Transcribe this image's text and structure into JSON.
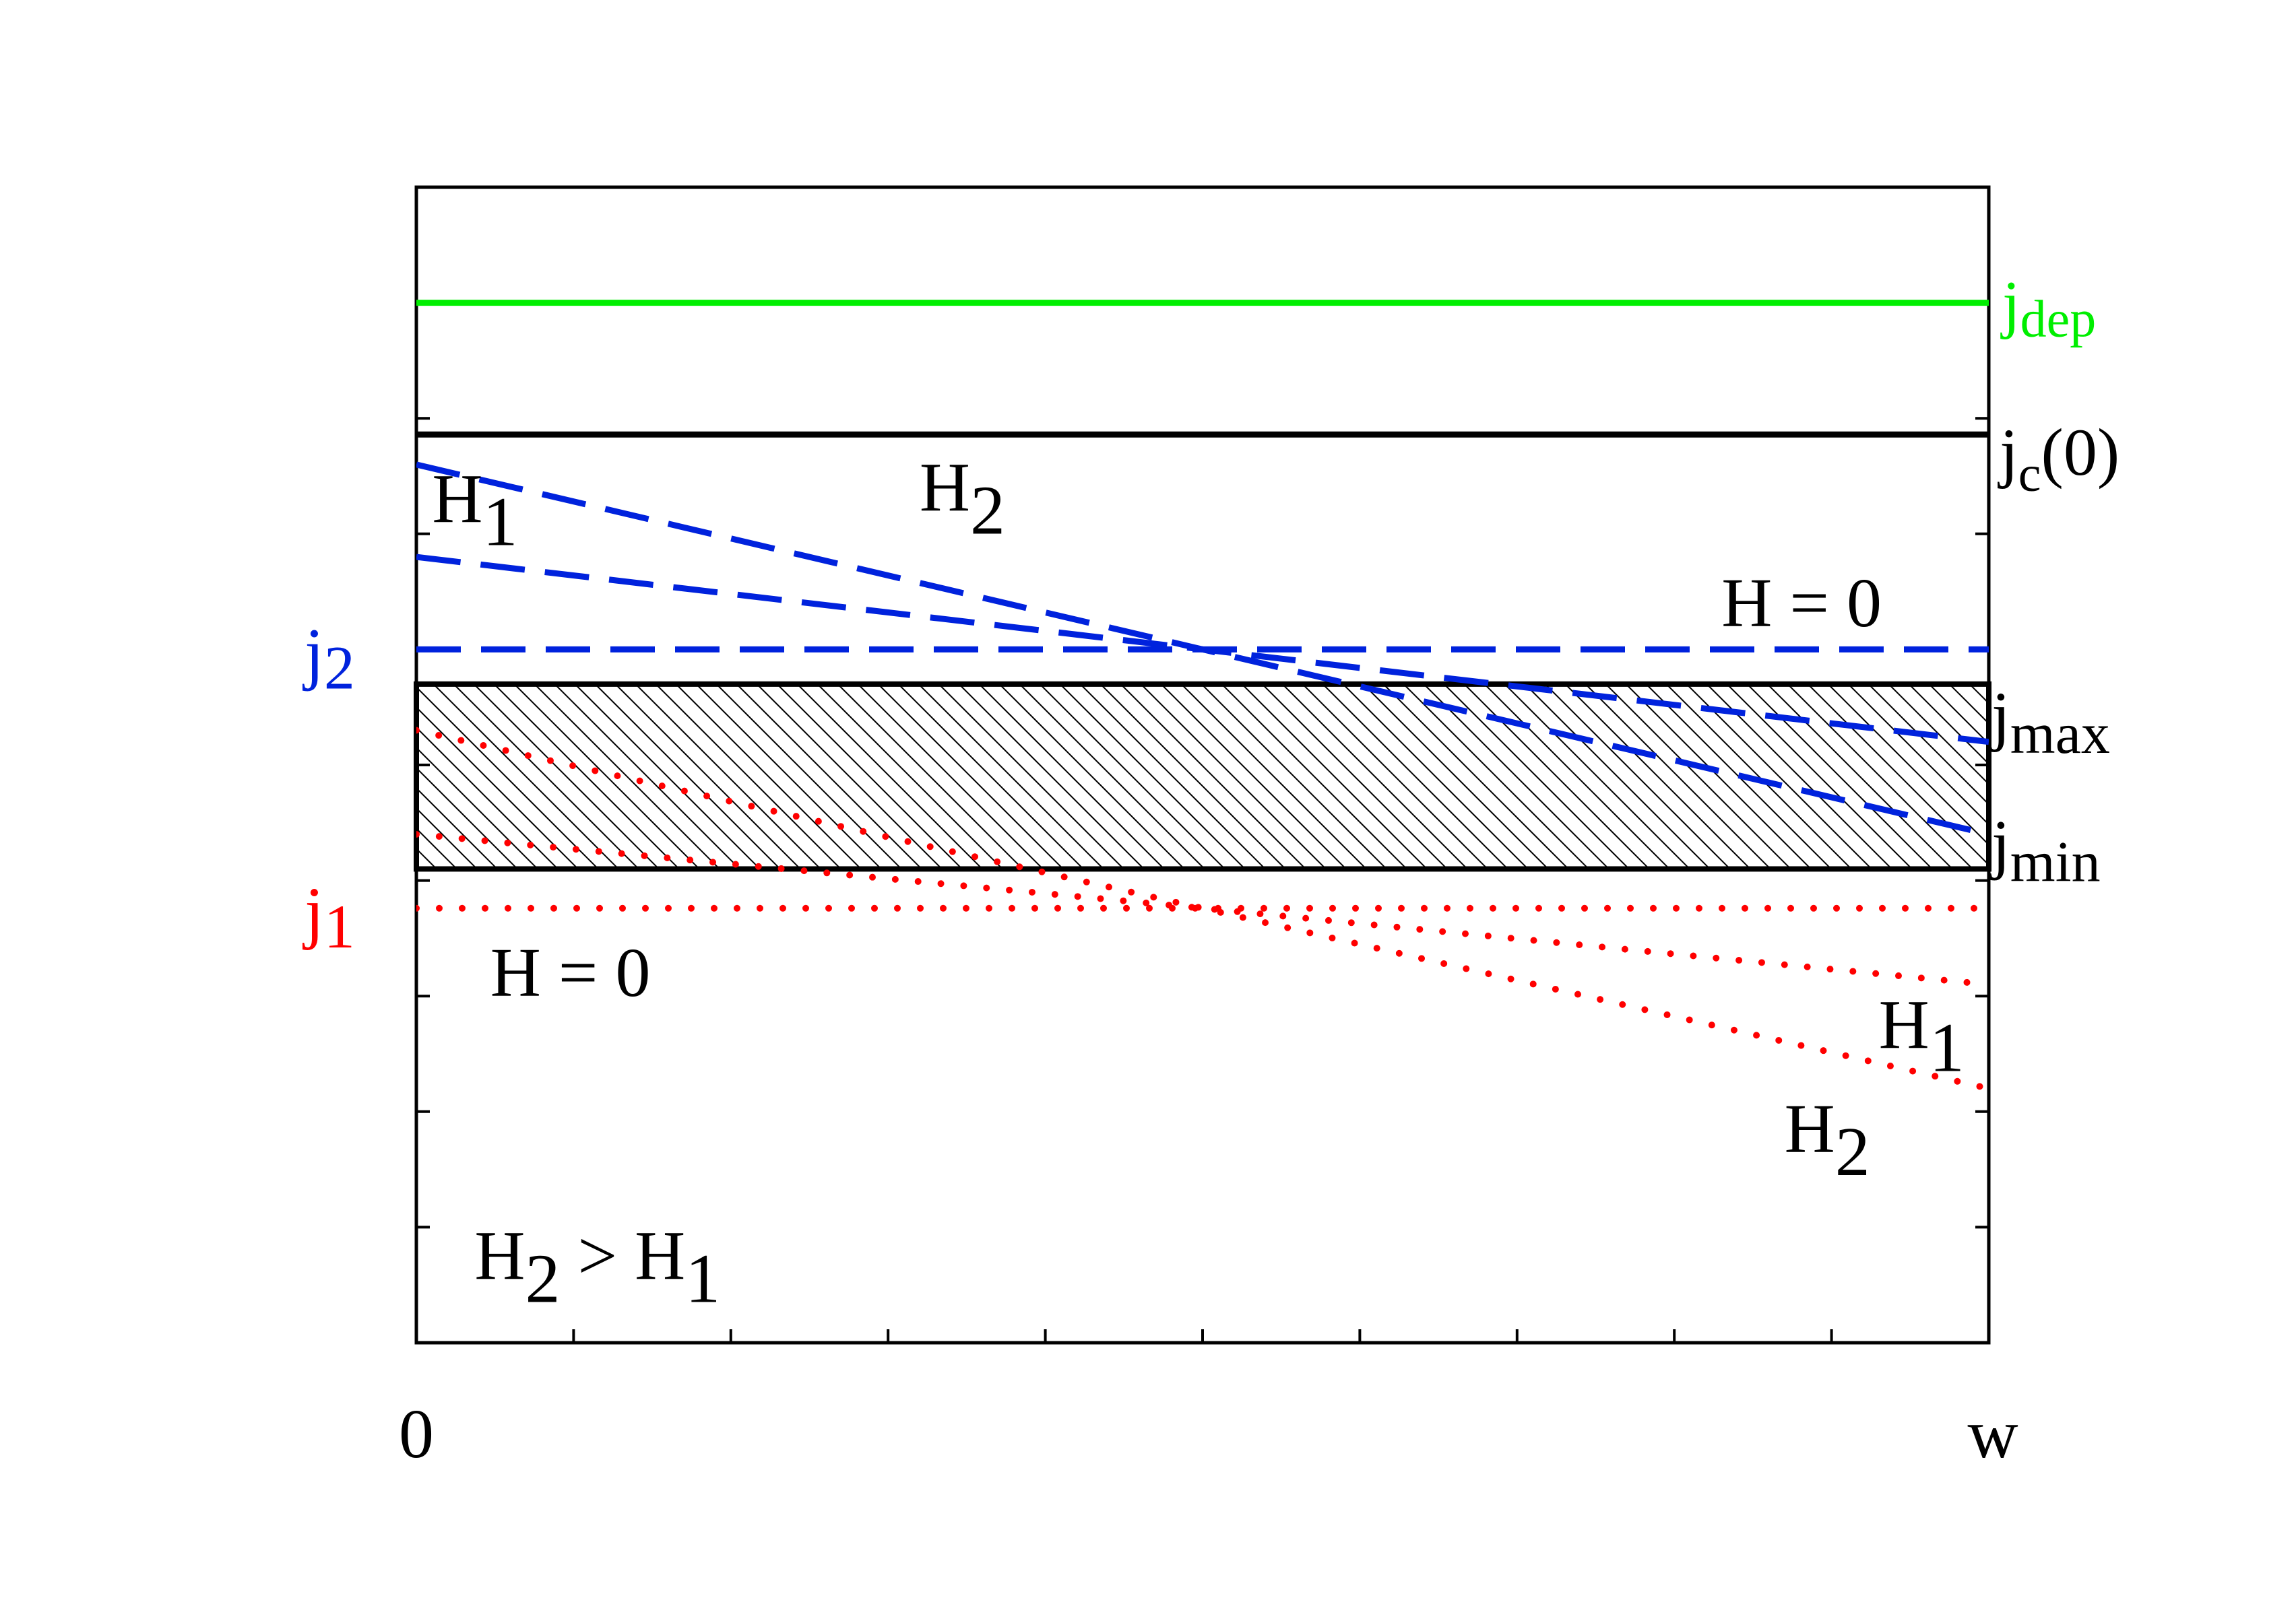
{
  "chart_data": {
    "type": "line",
    "title": "",
    "xlabel": "",
    "ylabel": "",
    "x_tick_labels": {
      "start": "0",
      "end": "w"
    },
    "xlim": [
      0,
      1
    ],
    "ylim": [
      0,
      1
    ],
    "grid": false,
    "colors": {
      "depairing": "#00ee00",
      "critical": "#000000",
      "upper_branch": "#0022dd",
      "lower_branch": "#ff0000",
      "band": "#000000"
    },
    "levels": [
      {
        "id": "jdep",
        "name": "j",
        "sub": "dep",
        "y": 0.9,
        "color": "#00ee00",
        "style": "solid"
      },
      {
        "id": "jc0",
        "name": "j",
        "sub": "c",
        "suffix": "(0)",
        "y": 0.786,
        "color": "#000000",
        "style": "solid"
      }
    ],
    "band": {
      "ymin": 0.41,
      "ymax": 0.57,
      "labels": {
        "max_name": "j",
        "max_sub": "max",
        "min_name": "j",
        "min_sub": "min"
      },
      "hatch": true
    },
    "upper_curves": {
      "label": {
        "name": "j",
        "sub": "2"
      },
      "style": "dashed",
      "color": "#0022dd",
      "series": [
        {
          "field": "H = 0",
          "x": [
            0,
            0.5,
            1
          ],
          "y": [
            0.6,
            0.6,
            0.6
          ]
        },
        {
          "field": "H1",
          "x": [
            0,
            0.5,
            1
          ],
          "y": [
            0.68,
            0.6,
            0.52
          ]
        },
        {
          "field": "H2",
          "x": [
            0,
            0.5,
            1
          ],
          "y": [
            0.76,
            0.6,
            0.44
          ]
        }
      ]
    },
    "lower_curves": {
      "label": {
        "name": "j",
        "sub": "1"
      },
      "style": "dotted",
      "color": "#ff0000",
      "series": [
        {
          "field": "H = 0",
          "x": [
            0,
            0.5,
            1
          ],
          "y": [
            0.376,
            0.376,
            0.376
          ]
        },
        {
          "field": "H1",
          "x": [
            0,
            0.5,
            1
          ],
          "y": [
            0.44,
            0.376,
            0.31
          ]
        },
        {
          "field": "H2",
          "x": [
            0,
            0.5,
            1
          ],
          "y": [
            0.53,
            0.376,
            0.22
          ]
        }
      ]
    },
    "annotations": [
      {
        "id": "upper-h1",
        "name": "H",
        "sub": "1",
        "x": 0.01,
        "y": 0.71
      },
      {
        "id": "upper-h2",
        "name": "H",
        "sub": "2",
        "x": 0.32,
        "y": 0.72
      },
      {
        "id": "upper-h0",
        "text": "H = 0",
        "x": 0.83,
        "y": 0.62
      },
      {
        "id": "lower-h0",
        "text": "H = 0",
        "x": 0.047,
        "y": 0.3
      },
      {
        "id": "lower-h1",
        "name": "H",
        "sub": "1",
        "x": 0.93,
        "y": 0.255
      },
      {
        "id": "lower-h2",
        "name": "H",
        "sub": "2",
        "x": 0.87,
        "y": 0.165
      },
      {
        "id": "compare",
        "name": "H",
        "sub": "2",
        "mid": " > ",
        "name2": "H",
        "sub2": "1",
        "x": 0.037,
        "y": 0.055
      }
    ]
  }
}
